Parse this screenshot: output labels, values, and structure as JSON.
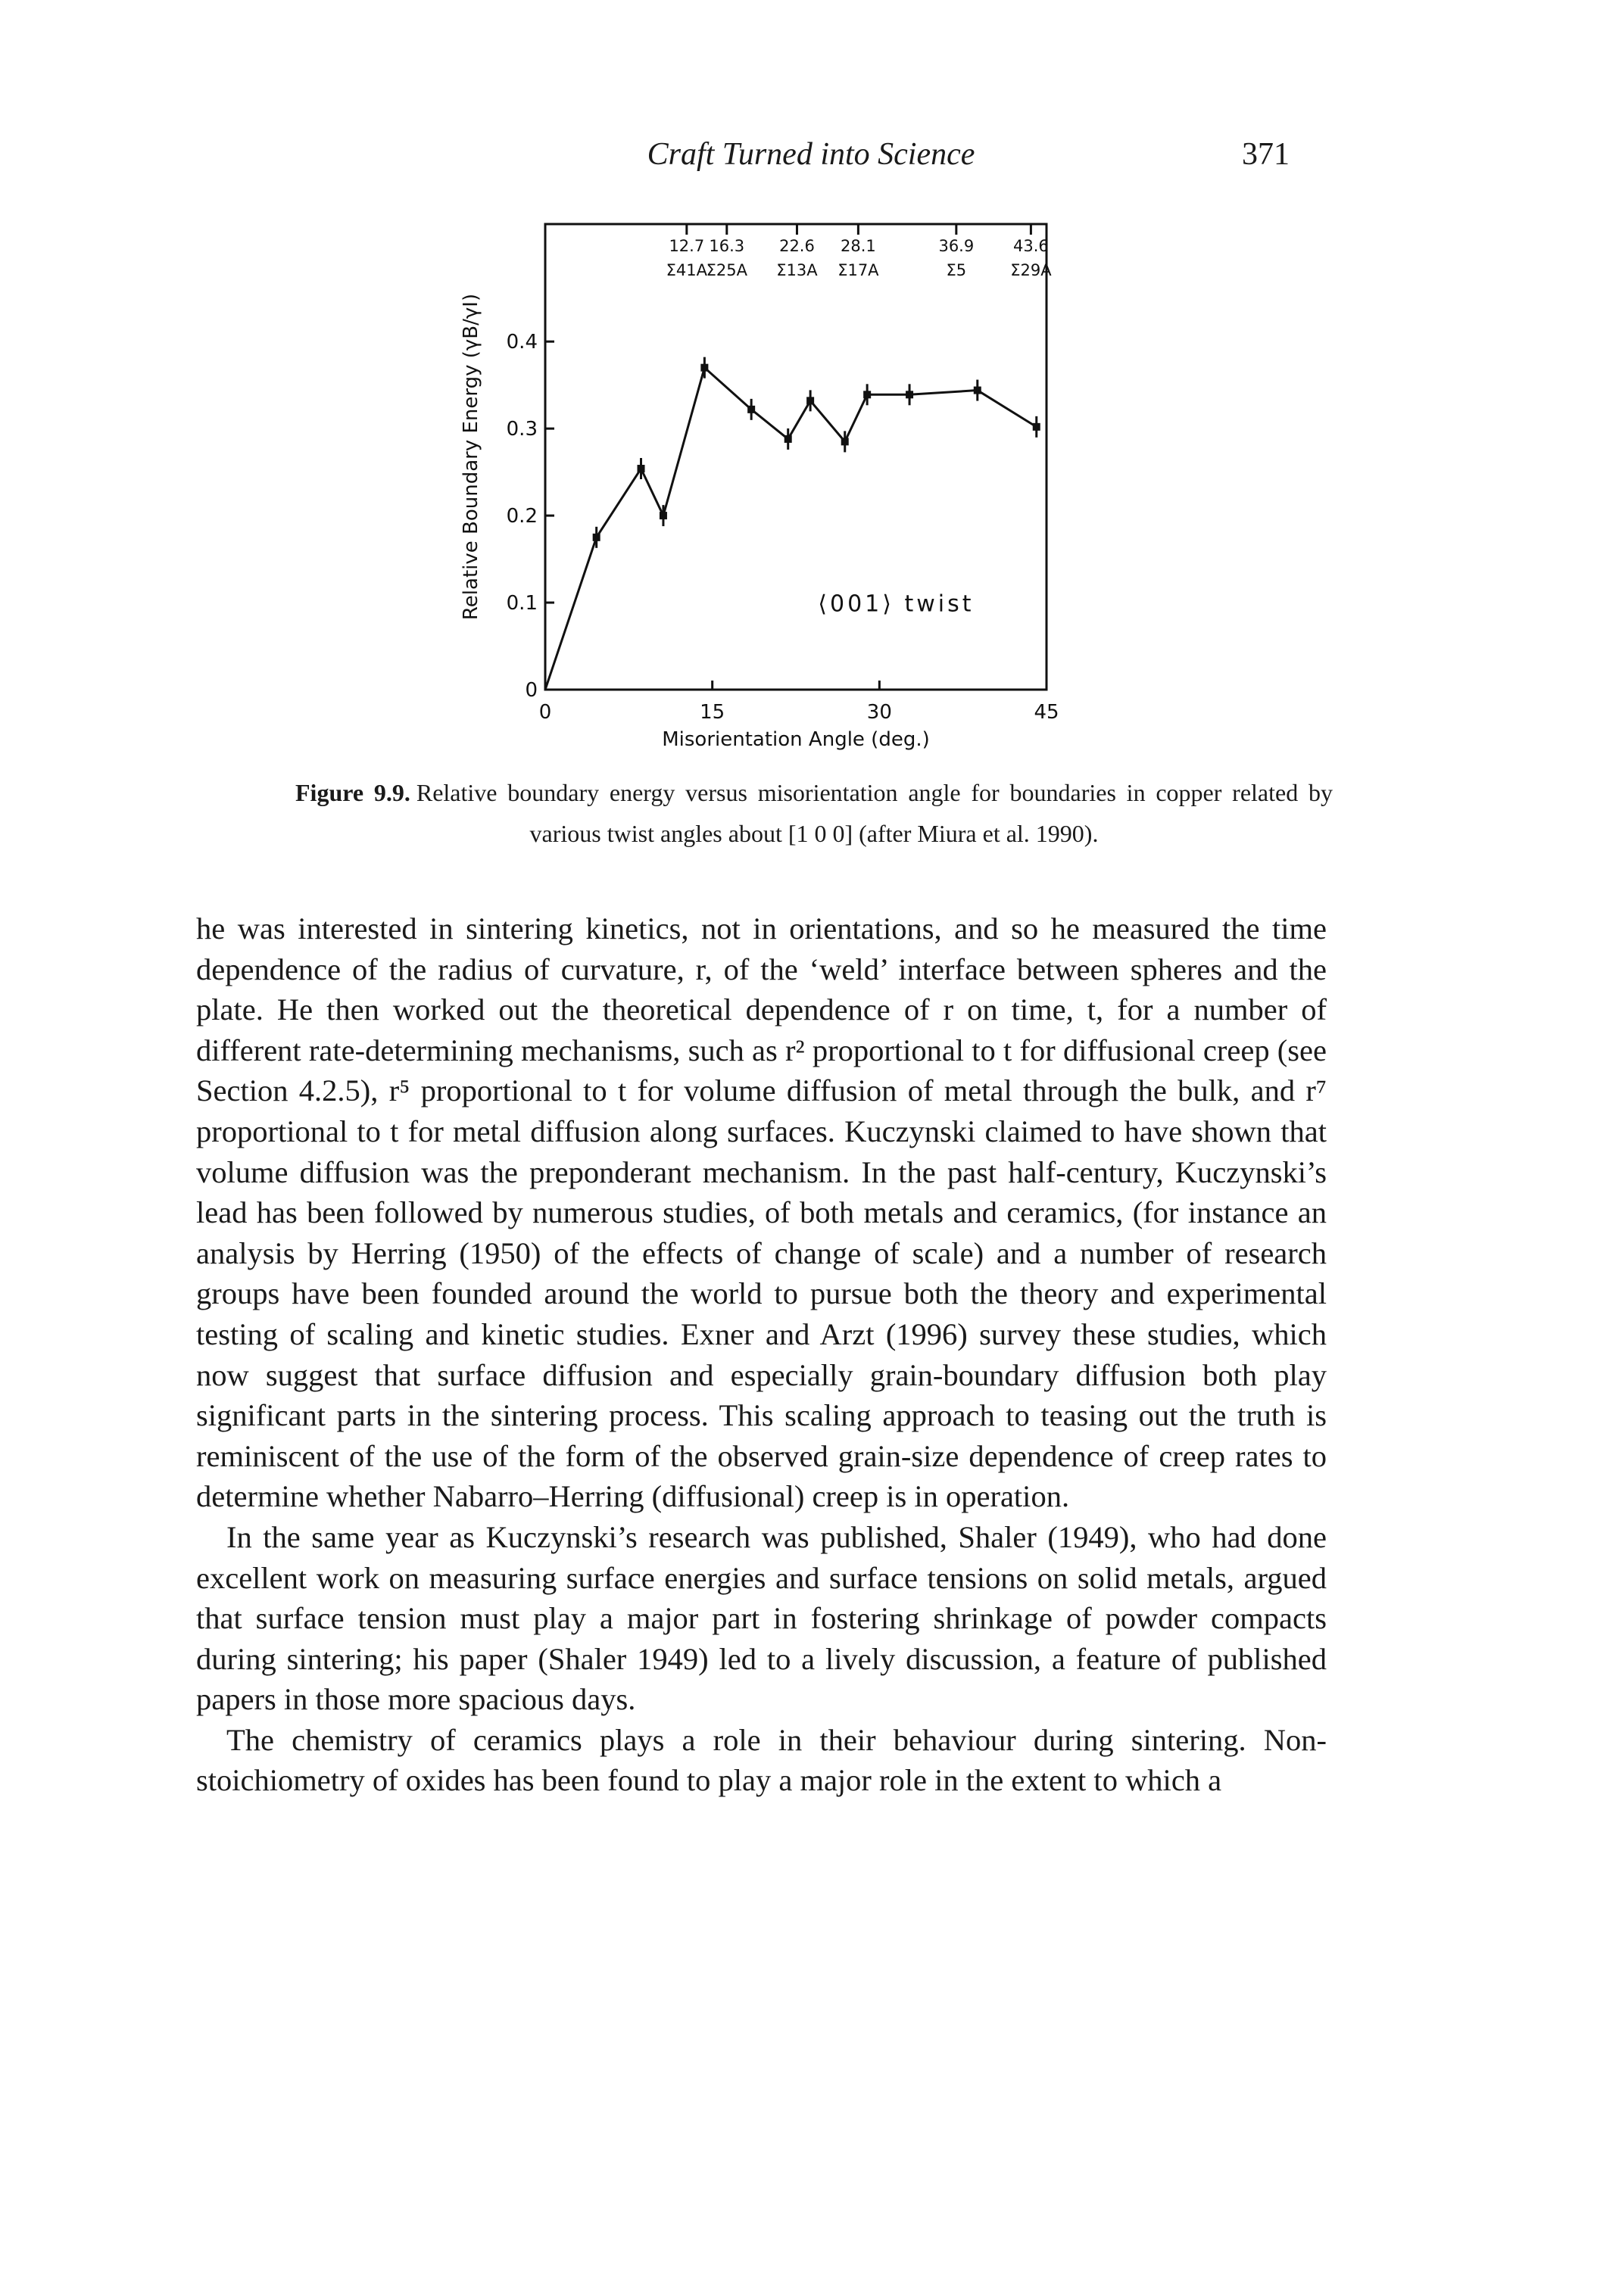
{
  "header": {
    "title": "Craft Turned into Science",
    "page_number": "371"
  },
  "chart_data": {
    "type": "line",
    "x_label": "Misorientation Angle (deg.)",
    "y_label": "Relative Boundary Energy (γB/γI)",
    "annotation": "⟨001⟩ twist",
    "xlim": [
      0,
      45
    ],
    "ylim": [
      0,
      0.535
    ],
    "xticks": [
      0,
      15,
      30,
      45
    ],
    "yticks": [
      0,
      0.1,
      0.2,
      0.3,
      0.4
    ],
    "top_ticks": [
      12.7,
      16.3,
      22.6,
      28.1,
      36.9,
      43.6
    ],
    "top_tick_sigmas": [
      "Σ41A",
      "Σ25A",
      "Σ13A",
      "Σ17A",
      "Σ5",
      "Σ29A"
    ],
    "series": [
      {
        "color": "#111111",
        "x": [
          0,
          4.6,
          8.6,
          10.6,
          14.3,
          18.5,
          21.8,
          23.8,
          26.9,
          28.9,
          32.7,
          38.8,
          44.1
        ],
        "values": [
          0,
          0.175,
          0.254,
          0.2,
          0.37,
          0.322,
          0.288,
          0.332,
          0.285,
          0.339,
          0.339,
          0.344,
          0.302
        ]
      }
    ]
  },
  "caption": {
    "label": "Figure 9.9.",
    "text": "Relative boundary energy versus misorientation angle for boundaries in copper related by various twist angles about [1 0 0] (after Miura et al. 1990)."
  },
  "body": [
    "he was interested in sintering kinetics, not in orientations, and so he measured the time dependence of the radius of curvature, r, of the ‘weld’ interface between spheres and the plate. He then worked out the theoretical dependence of r on time, t, for a number of different rate-determining mechanisms, such as r² proportional to t for diffusional creep (see Section 4.2.5), r⁵ proportional to t for volume diffusion of metal through the bulk, and r⁷ proportional to t for metal diffusion along surfaces. Kuczynski claimed to have shown that volume diffusion was the preponderant mechanism. In the past half-century, Kuczynski’s lead has been followed by numerous studies, of both metals and ceramics, (for instance an analysis by Herring (1950) of the effects of change of scale) and a number of research groups have been founded around the world to pursue both the theory and experimental testing of scaling and kinetic studies. Exner and Arzt (1996) survey these studies, which now suggest that surface diffusion and especially grain-boundary diffusion both play significant parts in the sintering process. This scaling approach to teasing out the truth is reminiscent of the use of the form of the observed grain-size dependence of creep rates to determine whether Nabarro–Herring (diffusional) creep is in operation.",
    "In the same year as Kuczynski’s research was published, Shaler (1949), who had done excellent work on measuring surface energies and surface tensions on solid metals, argued that surface tension must play a major part in fostering shrinkage of powder compacts during sintering; his paper (Shaler 1949) led to a lively discussion, a feature of published papers in those more spacious days.",
    "The chemistry of ceramics plays a role in their behaviour during sintering. Non-stoichiometry of oxides has been found to play a major role in the extent to which a"
  ]
}
